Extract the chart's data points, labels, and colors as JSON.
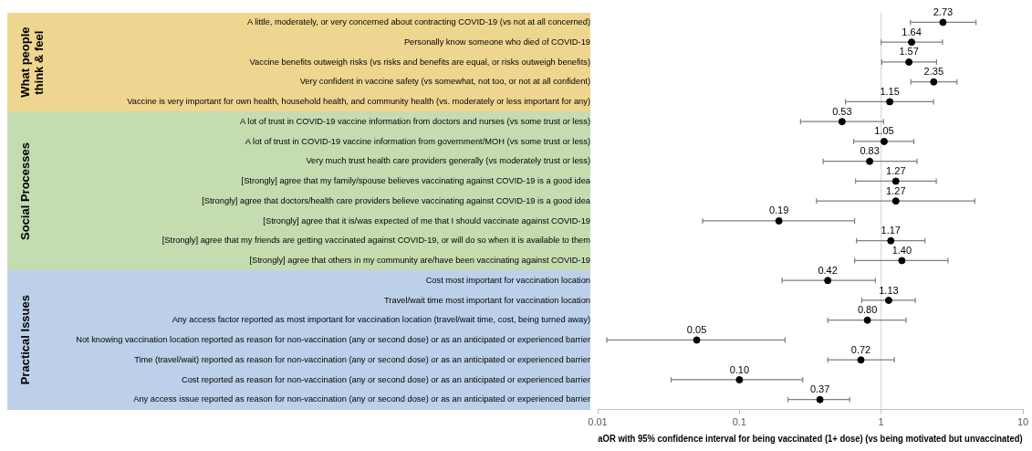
{
  "chart_data": {
    "type": "scatter",
    "orientation": "horizontal",
    "categories": [
      "A little, moderately, or very concerned about contracting COVID-19 (vs not at all concerned)",
      "Personally know someone who died of COVID-19",
      "Vaccine benefits outweigh risks (vs risks and benefits are equal, or risks outweigh benefits)",
      "Very confident in vaccine safety (vs somewhat, not too, or not at all confident)",
      "Vaccine is very important for own health, household health, and community health (vs. moderately or less important for any)",
      "A lot of trust in COVID-19 vaccine information from doctors and nurses (vs some trust or less)",
      "A lot of trust in COVID-19 vaccine information from government/MOH (vs some trust or less)",
      "Very much trust health care providers generally (vs moderately trust or less)",
      "[Strongly] agree that my family/spouse believes vaccinating against COVID-19 is a good idea",
      "[Strongly] agree that doctors/health care providers believe vaccinating against COVID-19 is a good idea",
      "[Strongly] agree that it is/was expected of me that I should vaccinate against COVID-19",
      "[Strongly] agree that my friends are getting vaccinated against COVID-19, or will do so when it is available to them",
      "[Strongly] agree that others in my community are/have been vaccinating against COVID-19",
      "Cost most important for vaccination location",
      "Travel/wait time most important for vaccination location",
      "Any access factor reported as most important for vaccination location (travel/wait time, cost, being turned away)",
      "Not knowing vaccination location reported as reason for non-vaccination (any or second dose) or as an anticipated or experienced barrier",
      "Time (travel/wait) reported as reason for non-vaccination (any or second dose) or as an anticipated or experienced barrier",
      "Cost reported as reason for non-vaccination (any or second dose) or as an anticipated or experienced barrier",
      "Any access issue reported as reason for non-vaccination (any or second dose) or as an anticipated or experienced barrier"
    ],
    "values": [
      2.73,
      1.64,
      1.57,
      2.35,
      1.15,
      0.53,
      1.05,
      0.83,
      1.27,
      1.27,
      0.19,
      1.17,
      1.4,
      0.42,
      1.13,
      0.8,
      0.05,
      0.72,
      0.1,
      0.37
    ],
    "value_labels": [
      "2.73",
      "1.64",
      "1.57",
      "2.35",
      "1.15",
      "0.53",
      "1.05",
      "0.83",
      "1.27",
      "1.27",
      "0.19",
      "1.17",
      "1.40",
      "0.42",
      "1.13",
      "0.80",
      "0.05",
      "0.72",
      "0.10",
      "0.37"
    ],
    "errors": [
      [
        1.61,
        4.67
      ],
      [
        1.0,
        2.71
      ],
      [
        1.01,
        2.46
      ],
      [
        1.62,
        3.43
      ],
      [
        0.56,
        2.34
      ],
      [
        0.27,
        1.04
      ],
      [
        0.64,
        1.7
      ],
      [
        0.39,
        1.79
      ],
      [
        0.66,
        2.45
      ],
      [
        0.35,
        4.58
      ],
      [
        0.055,
        0.65
      ],
      [
        0.67,
        2.04
      ],
      [
        0.65,
        2.96
      ],
      [
        0.2,
        0.91
      ],
      [
        0.73,
        1.74
      ],
      [
        0.42,
        1.5
      ],
      [
        0.0116,
        0.21
      ],
      [
        0.42,
        1.24
      ],
      [
        0.033,
        0.28
      ],
      [
        0.22,
        0.6
      ]
    ],
    "color": "#000000",
    "marker": "circle",
    "log": "x",
    "xlim": [
      0.01,
      10
    ],
    "xticks": [
      0.01,
      0.1,
      1,
      10
    ],
    "xlabel": "aOR with 95% confidence interval for being vaccinated (1+ dose) (vs being motivated but unvaccinated)",
    "ref_lines": [
      {
        "axis": "x",
        "value": 1,
        "color": "#d9d9d9"
      }
    ],
    "annotations": [
      "What people think & feel",
      "Social Processes",
      "Practical Issues"
    ],
    "grid": false,
    "legend": false
  }
}
